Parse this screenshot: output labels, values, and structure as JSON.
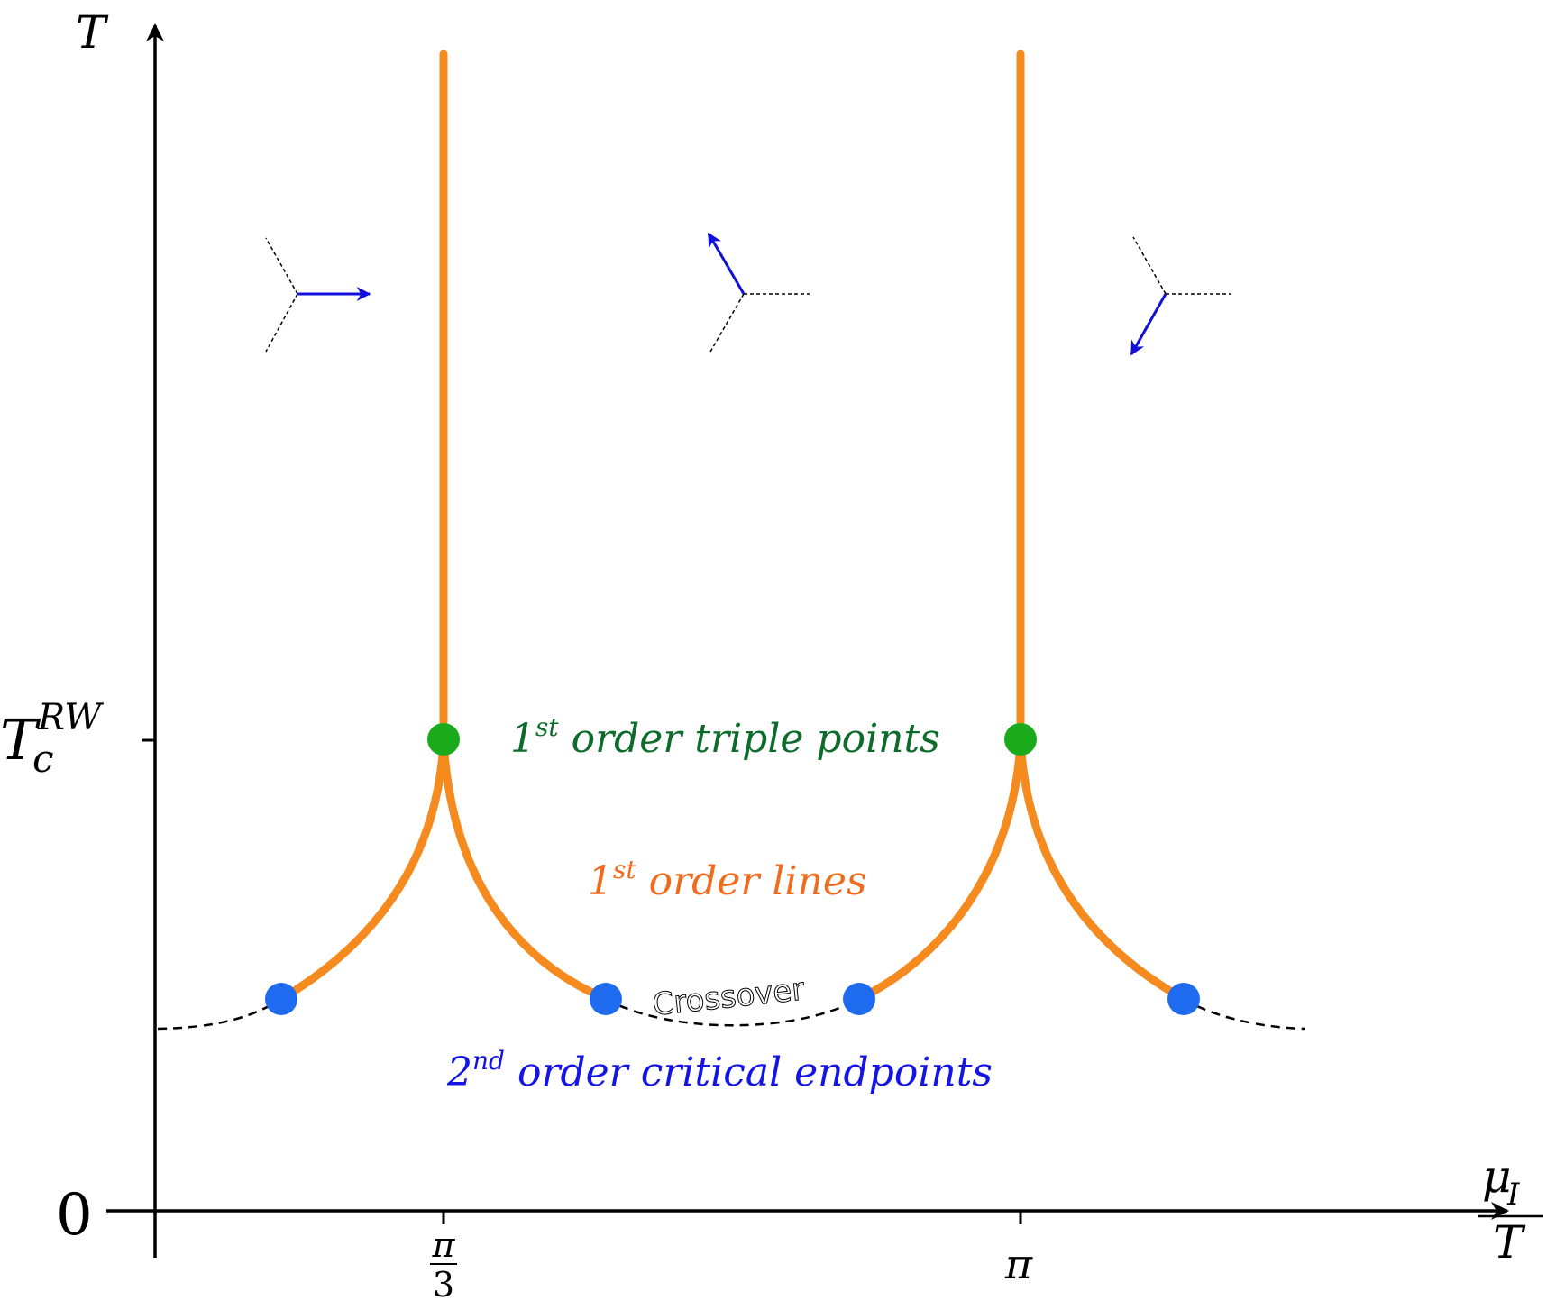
{
  "axes": {
    "y_label": "T",
    "x_label_num": "μ",
    "x_label_sub": "I",
    "x_label_den": "T",
    "y_tick_origin": "0",
    "y_tick_rw_main": "T",
    "y_tick_rw_sub": "c",
    "y_tick_rw_sup": "RW",
    "x_tick_pi3_num": "π",
    "x_tick_pi3_den": "3",
    "x_tick_pi": "π"
  },
  "labels": {
    "triple_num": "1",
    "triple_sup": "st",
    "triple_text": " order triple points",
    "lines_num": "1",
    "lines_sup": "st",
    "lines_text": " order lines",
    "crossover": "Crossover",
    "endpoints_num": "2",
    "endpoints_sup": "nd",
    "endpoints_text": " order critical endpoints"
  },
  "colors": {
    "first_order_lines": "#f58a1f",
    "triple_points": "#1aab1a",
    "triple_label": "#0d6b2b",
    "lines_label": "#ef6c1f",
    "endpoints": "#1f6bf0",
    "endpoints_label": "#1414e6",
    "arrows": "#1010d8",
    "axes": "#000000",
    "crossover": "#000000"
  },
  "icons": [
    "z3-vector-arrow-right",
    "z3-vector-arrow-up-left",
    "z3-vector-arrow-down-left"
  ]
}
